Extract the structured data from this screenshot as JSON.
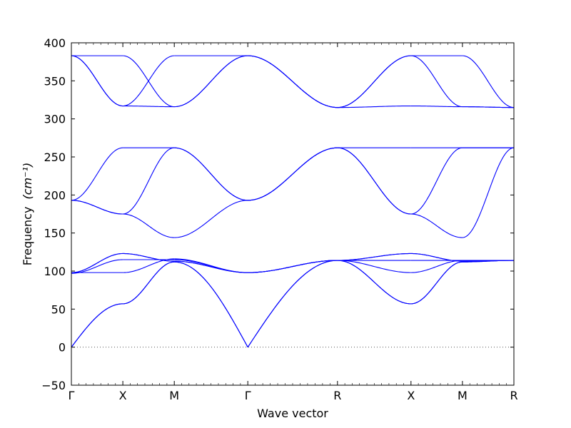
{
  "chart_data": {
    "type": "line",
    "title": "",
    "xlabel": "Wave vector",
    "ylabel": "Frequency",
    "ylabel_unit": "(cm⁻¹)",
    "ylim": [
      -50,
      400
    ],
    "yticks": [
      -50,
      0,
      50,
      100,
      150,
      200,
      250,
      300,
      350,
      400
    ],
    "xlim": [
      0,
      6
    ],
    "xticks": [
      {
        "x": 0,
        "label": "Γ"
      },
      {
        "x": 1,
        "label": "X"
      },
      {
        "x": 2,
        "label": "M"
      },
      {
        "x": 3,
        "label": "Γ"
      },
      {
        "x": 4,
        "label": "R"
      },
      {
        "x": 5,
        "label": "X"
      },
      {
        "x": 6,
        "label": "M"
      },
      {
        "x": 7,
        "label": "R"
      }
    ],
    "segment_lengths": [
      0.7,
      0.7,
      1.0,
      1.22,
      1.0,
      0.7,
      0.7
    ],
    "zero_line": true,
    "line_color": "#0000ff",
    "segments": [
      {
        "from": "Γ",
        "to": "X",
        "bands": [
          [
            0,
            57
          ],
          [
            0,
            57
          ],
          [
            97,
            115
          ],
          [
            98,
            98
          ],
          [
            98,
            123
          ],
          [
            98,
            123
          ],
          [
            193,
            175
          ],
          [
            193,
            175
          ],
          [
            193,
            262
          ],
          [
            383,
            317
          ],
          [
            383,
            317
          ],
          [
            383,
            383
          ]
        ]
      },
      {
        "from": "X",
        "to": "M",
        "bands": [
          [
            57,
            112
          ],
          [
            57,
            112
          ],
          [
            115,
            115
          ],
          [
            98,
            116
          ],
          [
            123,
            113
          ],
          [
            123,
            113
          ],
          [
            175,
            144
          ],
          [
            175,
            262
          ],
          [
            262,
            262
          ],
          [
            317,
            316
          ],
          [
            317,
            383
          ],
          [
            383,
            316
          ]
        ]
      },
      {
        "from": "M",
        "to": "Γ",
        "bands": [
          [
            112,
            0
          ],
          [
            112,
            0
          ],
          [
            115,
            98
          ],
          [
            116,
            98
          ],
          [
            113,
            98
          ],
          [
            113,
            98
          ],
          [
            144,
            193
          ],
          [
            262,
            193
          ],
          [
            262,
            193
          ],
          [
            316,
            383
          ],
          [
            383,
            383
          ],
          [
            316,
            383
          ]
        ]
      },
      {
        "from": "Γ",
        "to": "R",
        "bands": [
          [
            0,
            114
          ],
          [
            0,
            114
          ],
          [
            98,
            114
          ],
          [
            98,
            114
          ],
          [
            98,
            114
          ],
          [
            98,
            114
          ],
          [
            193,
            262
          ],
          [
            193,
            262
          ],
          [
            193,
            262
          ],
          [
            383,
            315
          ],
          [
            383,
            315
          ],
          [
            383,
            315
          ]
        ]
      },
      {
        "from": "R",
        "to": "X",
        "bands": [
          [
            114,
            57
          ],
          [
            114,
            57
          ],
          [
            114,
            123
          ],
          [
            114,
            98
          ],
          [
            114,
            114
          ],
          [
            114,
            123
          ],
          [
            262,
            175
          ],
          [
            262,
            175
          ],
          [
            262,
            262
          ],
          [
            315,
            317
          ],
          [
            315,
            383
          ],
          [
            315,
            383
          ]
        ]
      },
      {
        "from": "X",
        "to": "M",
        "bands": [
          [
            57,
            112
          ],
          [
            57,
            112
          ],
          [
            123,
            113
          ],
          [
            98,
            114
          ],
          [
            114,
            114
          ],
          [
            123,
            113
          ],
          [
            175,
            144
          ],
          [
            175,
            262
          ],
          [
            262,
            262
          ],
          [
            317,
            316
          ],
          [
            383,
            383
          ],
          [
            383,
            316
          ]
        ]
      },
      {
        "from": "M",
        "to": "R",
        "bands": [
          [
            112,
            114
          ],
          [
            112,
            114
          ],
          [
            113,
            114
          ],
          [
            114,
            114
          ],
          [
            114,
            114
          ],
          [
            113,
            114
          ],
          [
            144,
            262
          ],
          [
            262,
            262
          ],
          [
            262,
            262
          ],
          [
            316,
            315
          ],
          [
            383,
            315
          ],
          [
            316,
            315
          ]
        ]
      }
    ]
  }
}
